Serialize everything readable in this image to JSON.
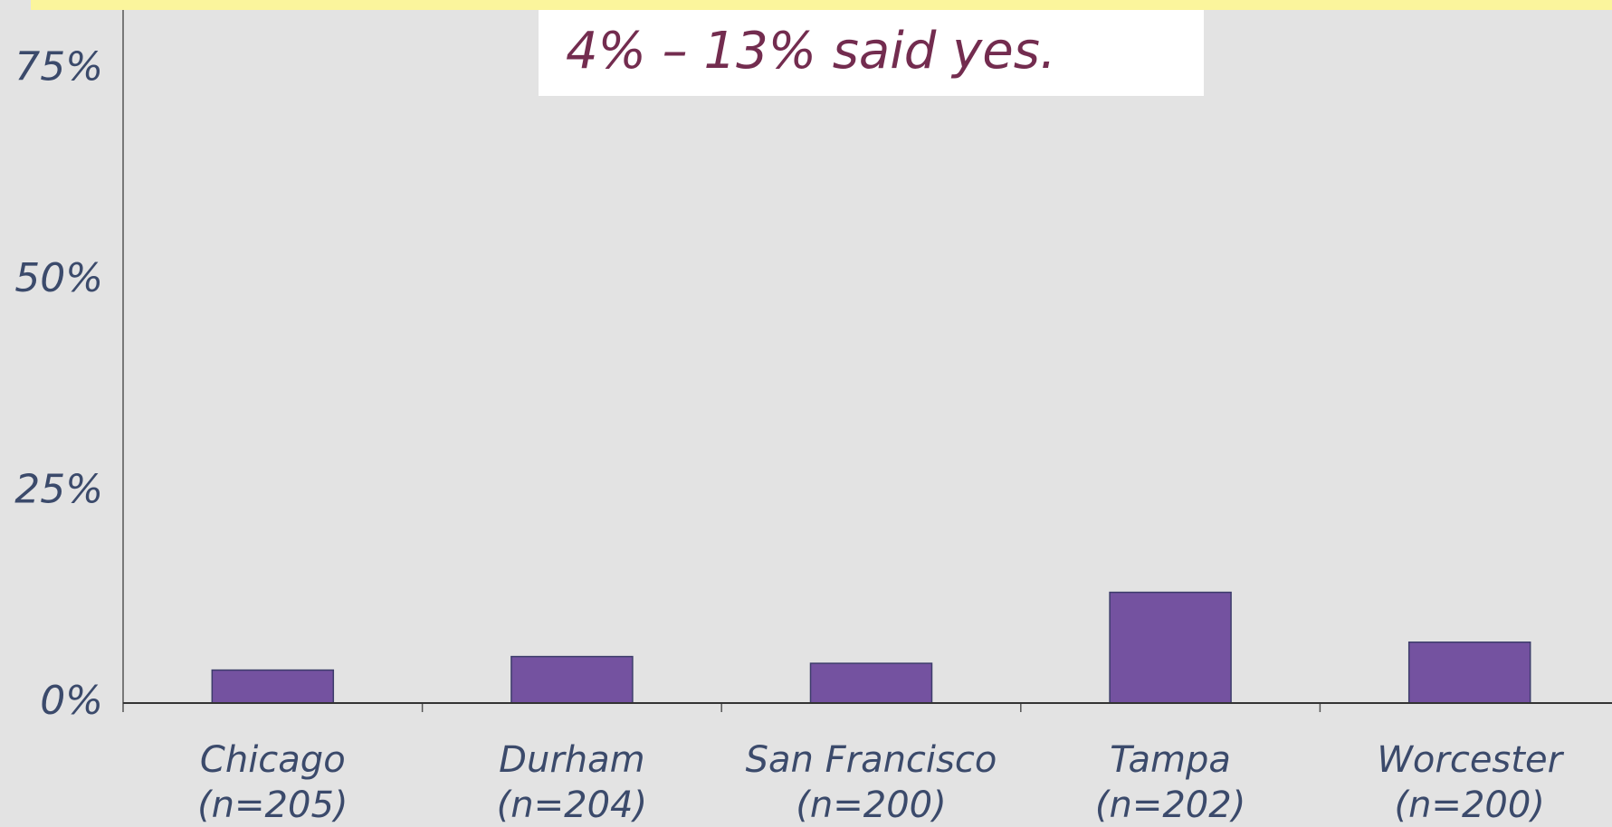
{
  "chart_data": {
    "type": "bar",
    "annotation": "4% – 13% said yes.",
    "categories": [
      [
        "Chicago",
        "(n=205)"
      ],
      [
        "Durham",
        "(n=204)"
      ],
      [
        "San Francisco",
        "(n=200)"
      ],
      [
        "Tampa",
        "(n=202)"
      ],
      [
        "Worcester",
        "(n=200)"
      ]
    ],
    "values": [
      3.9,
      5.5,
      4.7,
      13.1,
      7.2
    ],
    "color": "#7452a0",
    "ylim": [
      0,
      82
    ],
    "yticks": [
      {
        "value": 0,
        "label": "0%"
      },
      {
        "value": 25,
        "label": "25%"
      },
      {
        "value": 50,
        "label": "50%"
      },
      {
        "value": 75,
        "label": "75%"
      }
    ],
    "grid": false
  }
}
